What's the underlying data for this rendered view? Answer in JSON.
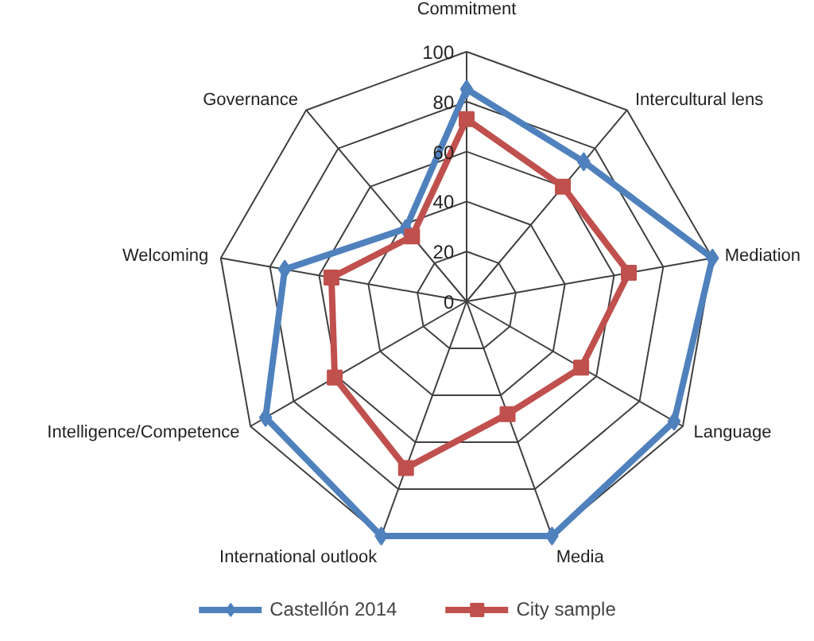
{
  "chart_data": {
    "type": "radar",
    "categories": [
      "Commitment",
      "Intercultural lens",
      "Mediation",
      "Language",
      "Media",
      "International outlook",
      "Intelligence/Competence",
      "Welcoming",
      "Governance"
    ],
    "series": [
      {
        "name": "Castellón 2014",
        "color": "#4f81bd",
        "values": [
          85,
          73,
          100,
          96,
          100,
          100,
          93,
          74,
          38
        ],
        "marker": "diamond"
      },
      {
        "name": "City sample",
        "color": "#c0504d",
        "values": [
          73,
          60,
          66,
          53,
          48,
          71,
          61,
          55,
          34
        ],
        "marker": "square"
      }
    ],
    "ylim": [
      0,
      100
    ],
    "yticks": [
      0,
      20,
      40,
      60,
      80,
      100
    ],
    "grid": true,
    "legend": "bottom"
  }
}
